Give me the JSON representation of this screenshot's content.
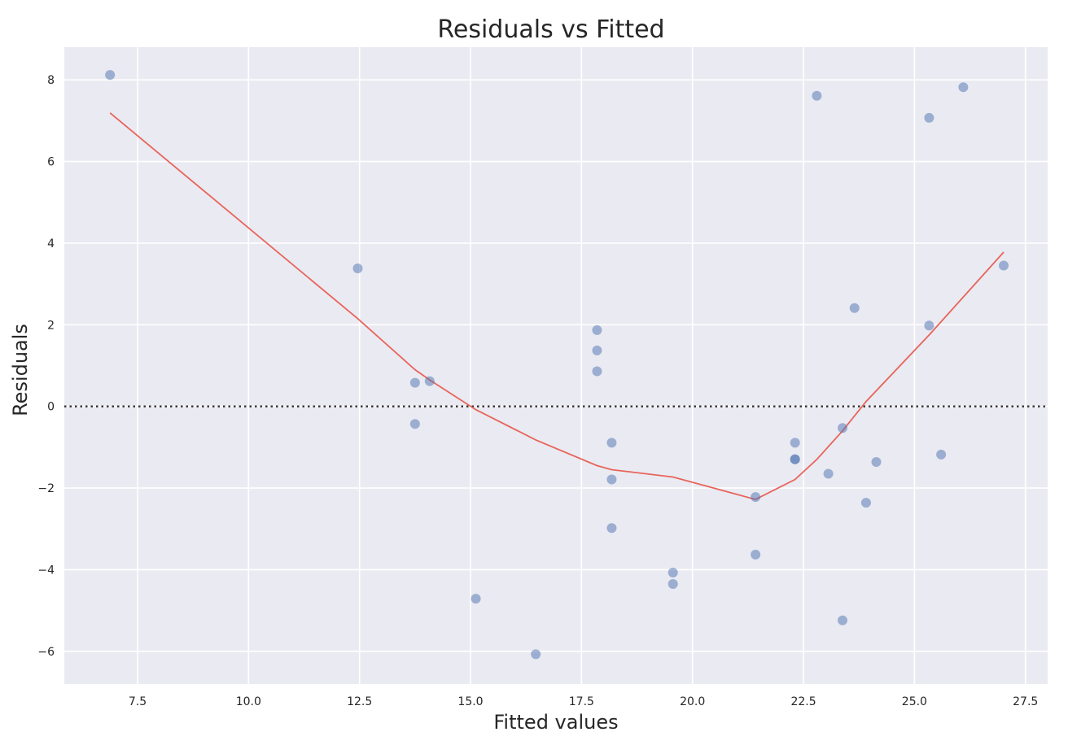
{
  "chart_data": {
    "type": "scatter",
    "title": "Residuals vs Fitted",
    "xlabel": "Fitted values",
    "ylabel": "Residuals",
    "xlim": [
      5.85,
      28.0
    ],
    "ylim": [
      -6.8,
      8.8
    ],
    "x_ticks": [
      "7.5",
      "10.0",
      "12.5",
      "15.0",
      "17.5",
      "20.0",
      "22.5",
      "25.0",
      "27.5"
    ],
    "y_ticks": [
      "−6",
      "−4",
      "−2",
      "0",
      "2",
      "4",
      "6",
      "8"
    ],
    "grid": true,
    "reference_line": {
      "y": 0,
      "style": "dotted"
    },
    "colors": {
      "plot_background": "#eaeaf2",
      "grid": "#ffffff",
      "points": "#4c72b0",
      "smooth_line": "#e8645a",
      "reference_line": "#333333"
    },
    "points": [
      {
        "x": 6.88,
        "y": 8.12
      },
      {
        "x": 12.46,
        "y": 3.38
      },
      {
        "x": 13.75,
        "y": 0.58
      },
      {
        "x": 13.75,
        "y": -0.43
      },
      {
        "x": 14.08,
        "y": 0.62
      },
      {
        "x": 15.12,
        "y": -4.71
      },
      {
        "x": 16.47,
        "y": -6.07
      },
      {
        "x": 17.85,
        "y": 1.87
      },
      {
        "x": 17.85,
        "y": 1.37
      },
      {
        "x": 17.85,
        "y": 0.86
      },
      {
        "x": 18.18,
        "y": -0.89
      },
      {
        "x": 18.18,
        "y": -1.79
      },
      {
        "x": 18.18,
        "y": -2.98
      },
      {
        "x": 19.56,
        "y": -4.07
      },
      {
        "x": 19.56,
        "y": -4.35
      },
      {
        "x": 21.42,
        "y": -2.22
      },
      {
        "x": 21.42,
        "y": -3.63
      },
      {
        "x": 22.31,
        "y": -0.89
      },
      {
        "x": 22.31,
        "y": -1.29
      },
      {
        "x": 22.31,
        "y": -1.3
      },
      {
        "x": 22.8,
        "y": 7.61
      },
      {
        "x": 23.06,
        "y": -1.65
      },
      {
        "x": 23.38,
        "y": -0.53
      },
      {
        "x": 23.38,
        "y": -5.24
      },
      {
        "x": 23.65,
        "y": 2.41
      },
      {
        "x": 23.91,
        "y": -2.36
      },
      {
        "x": 24.14,
        "y": -1.36
      },
      {
        "x": 25.33,
        "y": 7.07
      },
      {
        "x": 25.33,
        "y": 1.98
      },
      {
        "x": 25.6,
        "y": -1.18
      },
      {
        "x": 26.1,
        "y": 7.82
      },
      {
        "x": 27.01,
        "y": 3.45
      }
    ],
    "smooth_line": [
      {
        "x": 6.88,
        "y": 7.19
      },
      {
        "x": 12.46,
        "y": 2.15
      },
      {
        "x": 13.75,
        "y": 0.9
      },
      {
        "x": 14.08,
        "y": 0.65
      },
      {
        "x": 15.12,
        "y": -0.08
      },
      {
        "x": 16.47,
        "y": -0.82
      },
      {
        "x": 17.85,
        "y": -1.45
      },
      {
        "x": 18.18,
        "y": -1.55
      },
      {
        "x": 19.56,
        "y": -1.73
      },
      {
        "x": 21.42,
        "y": -2.28
      },
      {
        "x": 22.31,
        "y": -1.79
      },
      {
        "x": 22.8,
        "y": -1.3
      },
      {
        "x": 23.38,
        "y": -0.6
      },
      {
        "x": 23.91,
        "y": 0.12
      },
      {
        "x": 25.33,
        "y": 1.75
      },
      {
        "x": 27.01,
        "y": 3.78
      }
    ]
  }
}
